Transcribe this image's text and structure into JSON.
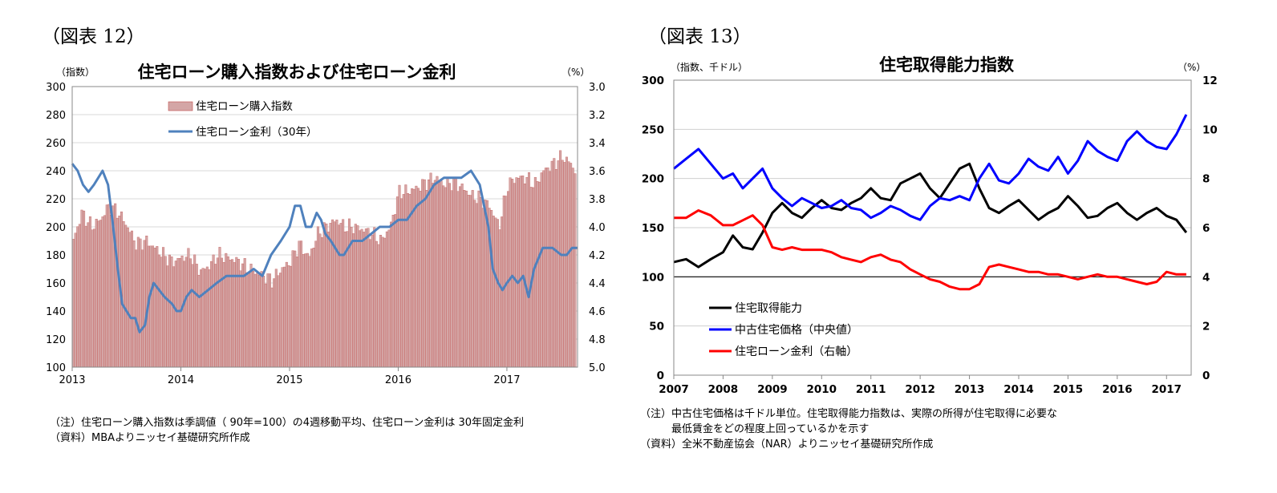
{
  "fig12": {
    "label": "（図表 12）",
    "notes": [
      "（注）住宅ローン購入指数は季調値（ 90年=100）の4週移動平均、住宅ローン金利は 30年固定金利",
      "（資料）MBAよりニッセイ基礎研究所作成"
    ]
  },
  "fig13": {
    "label": "（図表 13）",
    "notes": [
      "（注）中古住宅価格は千ドル単位。住宅取得能力指数は、実際の所得が住宅取得に必要な",
      "　　　最低賃金をどの程度上回っているかを示す",
      "（資料）全米不動産協会（NAR）よりニッセイ基礎研究所作成"
    ]
  },
  "chart_data": [
    {
      "type": "bar",
      "title": "住宅ローン購入指数および住宅ローン金利",
      "ylabel": "（指数）",
      "y2label": "（%）",
      "ylim": [
        100,
        300
      ],
      "yticks": [
        100,
        120,
        140,
        160,
        180,
        200,
        220,
        240,
        260,
        280,
        300
      ],
      "y2lim": [
        5.0,
        3.0
      ],
      "y2_inverted": true,
      "y2ticks": [
        "5.0",
        "4.8",
        "4.6",
        "4.4",
        "4.2",
        "4.0",
        "3.8",
        "3.6",
        "3.4",
        "3.2",
        "3.0"
      ],
      "xlim": [
        2013.0,
        2017.65
      ],
      "xticks": [
        "2013",
        "2014",
        "2015",
        "2016",
        "2017"
      ],
      "grid": "horizontal",
      "legend_position": "top-left",
      "colors": {
        "bars": "#d4a6a6",
        "bar_edge": "#c0504d",
        "rate": "#4f81bd"
      },
      "series": [
        {
          "name": "住宅ローン購入指数",
          "kind": "bar",
          "axis": "left",
          "x": [
            2013.0,
            2013.08,
            2013.17,
            2013.25,
            2013.33,
            2013.42,
            2013.5,
            2013.58,
            2013.67,
            2013.75,
            2013.83,
            2013.92,
            2014.0,
            2014.08,
            2014.17,
            2014.25,
            2014.33,
            2014.42,
            2014.5,
            2014.58,
            2014.67,
            2014.75,
            2014.83,
            2014.92,
            2015.0,
            2015.08,
            2015.17,
            2015.25,
            2015.33,
            2015.42,
            2015.5,
            2015.58,
            2015.67,
            2015.75,
            2015.83,
            2015.92,
            2016.0,
            2016.08,
            2016.17,
            2016.25,
            2016.33,
            2016.42,
            2016.5,
            2016.58,
            2016.67,
            2016.75,
            2016.83,
            2016.92,
            2017.0,
            2017.08,
            2017.17,
            2017.25,
            2017.33,
            2017.42,
            2017.5,
            2017.58,
            2017.62
          ],
          "values": [
            190,
            210,
            200,
            205,
            215,
            210,
            200,
            188,
            190,
            185,
            180,
            175,
            178,
            180,
            168,
            172,
            180,
            178,
            176,
            172,
            168,
            165,
            162,
            170,
            175,
            188,
            178,
            195,
            200,
            205,
            200,
            200,
            198,
            195,
            190,
            200,
            225,
            225,
            228,
            232,
            235,
            230,
            232,
            228,
            222,
            220,
            215,
            200,
            230,
            235,
            235,
            230,
            240,
            245,
            250,
            245,
            240
          ]
        },
        {
          "name": "住宅ローン金利（30年）",
          "kind": "line",
          "axis": "right",
          "x": [
            2013.0,
            2013.05,
            2013.1,
            2013.15,
            2013.2,
            2013.28,
            2013.33,
            2013.37,
            2013.42,
            2013.46,
            2013.5,
            2013.54,
            2013.58,
            2013.62,
            2013.67,
            2013.71,
            2013.75,
            2013.8,
            2013.85,
            2013.92,
            2013.96,
            2014.0,
            2014.05,
            2014.1,
            2014.17,
            2014.25,
            2014.33,
            2014.42,
            2014.5,
            2014.58,
            2014.67,
            2014.75,
            2014.83,
            2014.92,
            2015.0,
            2015.05,
            2015.1,
            2015.15,
            2015.2,
            2015.25,
            2015.29,
            2015.33,
            2015.38,
            2015.42,
            2015.46,
            2015.5,
            2015.58,
            2015.67,
            2015.75,
            2015.83,
            2015.92,
            2016.0,
            2016.08,
            2016.17,
            2016.25,
            2016.33,
            2016.42,
            2016.5,
            2016.58,
            2016.67,
            2016.75,
            2016.83,
            2016.87,
            2016.92,
            2016.96,
            2017.0,
            2017.05,
            2017.1,
            2017.15,
            2017.2,
            2017.25,
            2017.33,
            2017.42,
            2017.5,
            2017.55,
            2017.6,
            2017.65
          ],
          "values": [
            3.55,
            3.6,
            3.7,
            3.75,
            3.7,
            3.6,
            3.7,
            3.95,
            4.3,
            4.55,
            4.6,
            4.65,
            4.65,
            4.75,
            4.7,
            4.5,
            4.4,
            4.45,
            4.5,
            4.55,
            4.6,
            4.6,
            4.5,
            4.45,
            4.5,
            4.45,
            4.4,
            4.35,
            4.35,
            4.35,
            4.3,
            4.35,
            4.2,
            4.1,
            4.0,
            3.85,
            3.85,
            4.0,
            4.0,
            3.9,
            3.95,
            4.05,
            4.1,
            4.15,
            4.2,
            4.2,
            4.1,
            4.1,
            4.05,
            4.0,
            4.0,
            3.95,
            3.95,
            3.85,
            3.8,
            3.7,
            3.65,
            3.65,
            3.65,
            3.6,
            3.7,
            4.0,
            4.3,
            4.4,
            4.45,
            4.4,
            4.35,
            4.4,
            4.35,
            4.5,
            4.3,
            4.15,
            4.15,
            4.2,
            4.2,
            4.15,
            4.15
          ]
        }
      ]
    },
    {
      "type": "line",
      "title": "住宅取得能力指数",
      "ylabel": "（指数、千ドル）",
      "y2label": "（%）",
      "ylim": [
        0,
        300
      ],
      "yticks": [
        0,
        50,
        100,
        150,
        200,
        250,
        300
      ],
      "y2lim": [
        0,
        12
      ],
      "y2ticks": [
        0,
        2,
        4,
        6,
        8,
        10,
        12
      ],
      "xlim": [
        2007.0,
        2017.5
      ],
      "xticks": [
        "2007",
        "2008",
        "2009",
        "2010",
        "2011",
        "2012",
        "2013",
        "2014",
        "2015",
        "2016",
        "2017"
      ],
      "grid": "horizontal",
      "legend_position": "bottom-left",
      "colors": {
        "affordability": "#000000",
        "price": "#0000ff",
        "rate": "#ff0000"
      },
      "series": [
        {
          "name": "住宅取得能力",
          "axis": "left",
          "color": "#000000",
          "x": [
            2007.0,
            2007.25,
            2007.5,
            2007.75,
            2008.0,
            2008.2,
            2008.4,
            2008.6,
            2008.8,
            2009.0,
            2009.2,
            2009.4,
            2009.6,
            2009.8,
            2010.0,
            2010.2,
            2010.4,
            2010.6,
            2010.8,
            2011.0,
            2011.2,
            2011.4,
            2011.6,
            2011.8,
            2012.0,
            2012.2,
            2012.4,
            2012.6,
            2012.8,
            2013.0,
            2013.2,
            2013.4,
            2013.6,
            2013.8,
            2014.0,
            2014.2,
            2014.4,
            2014.6,
            2014.8,
            2015.0,
            2015.2,
            2015.4,
            2015.6,
            2015.8,
            2016.0,
            2016.2,
            2016.4,
            2016.6,
            2016.8,
            2017.0,
            2017.2,
            2017.4
          ],
          "values": [
            115,
            118,
            110,
            118,
            125,
            142,
            130,
            128,
            145,
            165,
            175,
            165,
            160,
            170,
            178,
            170,
            168,
            175,
            180,
            190,
            180,
            178,
            195,
            200,
            205,
            190,
            180,
            195,
            210,
            215,
            190,
            170,
            165,
            172,
            178,
            168,
            158,
            165,
            170,
            182,
            172,
            160,
            162,
            170,
            175,
            165,
            158,
            165,
            170,
            162,
            158,
            145
          ]
        },
        {
          "name": "中古住宅価格（中央値）",
          "axis": "left",
          "color": "#0000ff",
          "x": [
            2007.0,
            2007.25,
            2007.5,
            2007.75,
            2008.0,
            2008.2,
            2008.4,
            2008.6,
            2008.8,
            2009.0,
            2009.2,
            2009.4,
            2009.6,
            2009.8,
            2010.0,
            2010.2,
            2010.4,
            2010.6,
            2010.8,
            2011.0,
            2011.2,
            2011.4,
            2011.6,
            2011.8,
            2012.0,
            2012.2,
            2012.4,
            2012.6,
            2012.8,
            2013.0,
            2013.2,
            2013.4,
            2013.6,
            2013.8,
            2014.0,
            2014.2,
            2014.4,
            2014.6,
            2014.8,
            2015.0,
            2015.2,
            2015.4,
            2015.6,
            2015.8,
            2016.0,
            2016.2,
            2016.4,
            2016.6,
            2016.8,
            2017.0,
            2017.2,
            2017.4
          ],
          "values": [
            210,
            220,
            230,
            215,
            200,
            205,
            190,
            200,
            210,
            190,
            180,
            172,
            180,
            175,
            170,
            172,
            178,
            170,
            168,
            160,
            165,
            172,
            168,
            162,
            158,
            172,
            180,
            178,
            182,
            178,
            200,
            215,
            198,
            195,
            205,
            220,
            212,
            208,
            222,
            205,
            218,
            238,
            228,
            222,
            218,
            238,
            248,
            238,
            232,
            230,
            245,
            265
          ]
        },
        {
          "name": "住宅ローン金利（右軸）",
          "axis": "right",
          "color": "#ff0000",
          "x": [
            2007.0,
            2007.25,
            2007.5,
            2007.75,
            2008.0,
            2008.2,
            2008.4,
            2008.6,
            2008.8,
            2009.0,
            2009.2,
            2009.4,
            2009.6,
            2009.8,
            2010.0,
            2010.2,
            2010.4,
            2010.6,
            2010.8,
            2011.0,
            2011.2,
            2011.4,
            2011.6,
            2011.8,
            2012.0,
            2012.2,
            2012.4,
            2012.6,
            2012.8,
            2013.0,
            2013.2,
            2013.4,
            2013.6,
            2013.8,
            2014.0,
            2014.2,
            2014.4,
            2014.6,
            2014.8,
            2015.0,
            2015.2,
            2015.4,
            2015.6,
            2015.8,
            2016.0,
            2016.2,
            2016.4,
            2016.6,
            2016.8,
            2017.0,
            2017.2,
            2017.4
          ],
          "values": [
            6.4,
            6.4,
            6.7,
            6.5,
            6.1,
            6.1,
            6.3,
            6.5,
            6.1,
            5.2,
            5.1,
            5.2,
            5.1,
            5.1,
            5.1,
            5.0,
            4.8,
            4.7,
            4.6,
            4.8,
            4.9,
            4.7,
            4.6,
            4.3,
            4.1,
            3.9,
            3.8,
            3.6,
            3.5,
            3.5,
            3.7,
            4.4,
            4.5,
            4.4,
            4.3,
            4.2,
            4.2,
            4.1,
            4.1,
            4.0,
            3.9,
            4.0,
            4.1,
            4.0,
            4.0,
            3.9,
            3.8,
            3.7,
            3.8,
            4.2,
            4.1,
            4.1
          ]
        }
      ]
    }
  ]
}
